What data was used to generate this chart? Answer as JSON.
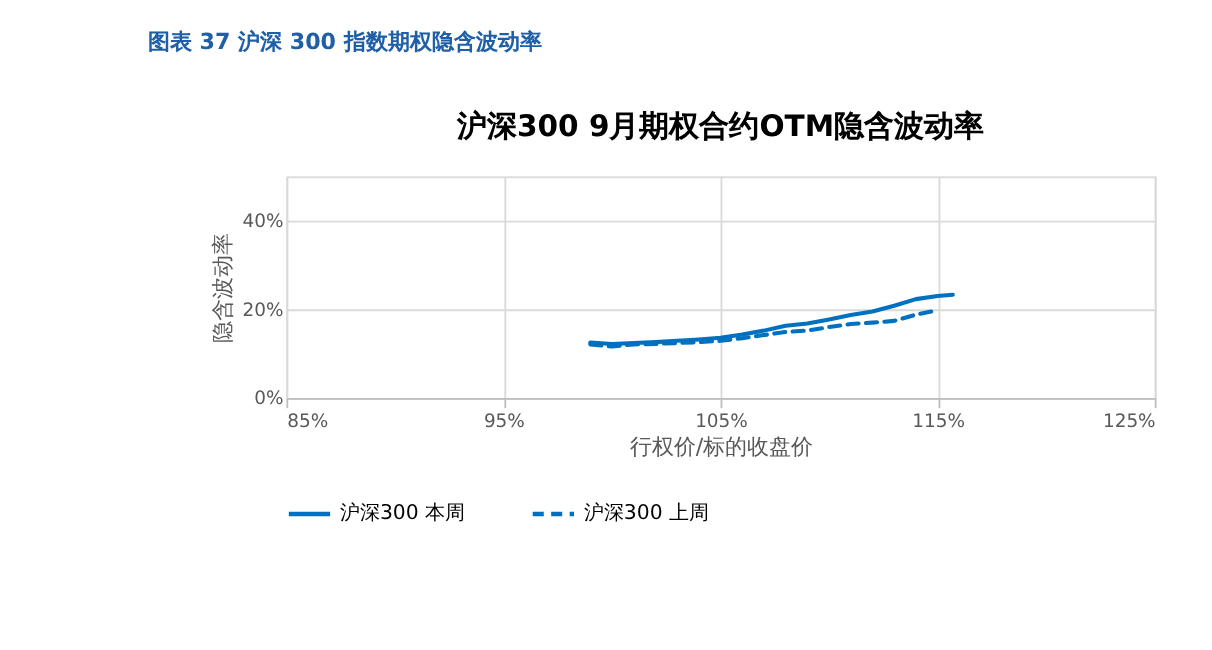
{
  "chart_data": {
    "type": "line",
    "title": "沪深300 9月期权合约OTM隐含波动率",
    "annotations": [
      "图表 37 沪深 300 指数期权隐含波动率"
    ],
    "xlabel": "行权价/标的收盘价",
    "ylabel": "隐含波动率",
    "series": [
      {
        "name": "沪深300 本周",
        "color": "#0070c0",
        "line_style": "solid",
        "x": [
          99,
          100,
          101,
          102,
          103,
          104,
          105,
          106,
          107,
          108,
          109,
          110,
          111,
          112,
          113,
          114,
          115,
          115.7
        ],
        "values": [
          12.5,
          12.2,
          12.4,
          12.6,
          12.9,
          13.2,
          13.6,
          14.3,
          15.2,
          16.3,
          16.8,
          17.7,
          18.7,
          19.5,
          20.8,
          22.3,
          23.0,
          23.3
        ]
      },
      {
        "name": "沪深300 上周",
        "color": "#0070c0",
        "line_style": "dashed",
        "x": [
          99,
          100,
          101,
          102,
          103,
          104,
          105,
          106,
          107,
          108,
          109,
          110,
          111,
          112,
          113,
          114,
          115
        ],
        "values": [
          12.1,
          11.6,
          12.1,
          12.2,
          12.4,
          12.6,
          12.9,
          13.5,
          14.2,
          14.9,
          15.2,
          16.0,
          16.7,
          17.0,
          17.4,
          18.8,
          19.8
        ]
      }
    ],
    "xlim": [
      85,
      125
    ],
    "xticks": [
      {
        "value": 85,
        "label": "85%"
      },
      {
        "value": 95,
        "label": "95%"
      },
      {
        "value": 105,
        "label": "105%"
      },
      {
        "value": 115,
        "label": "115%"
      },
      {
        "value": 125,
        "label": "125%"
      }
    ],
    "ylim": [
      0,
      50
    ],
    "yticks": [
      {
        "value": 0,
        "label": "0%"
      },
      {
        "value": 20,
        "label": "20%"
      },
      {
        "value": 40,
        "label": "40%"
      }
    ],
    "grid": true,
    "legend": "bottom",
    "marker": "none"
  }
}
